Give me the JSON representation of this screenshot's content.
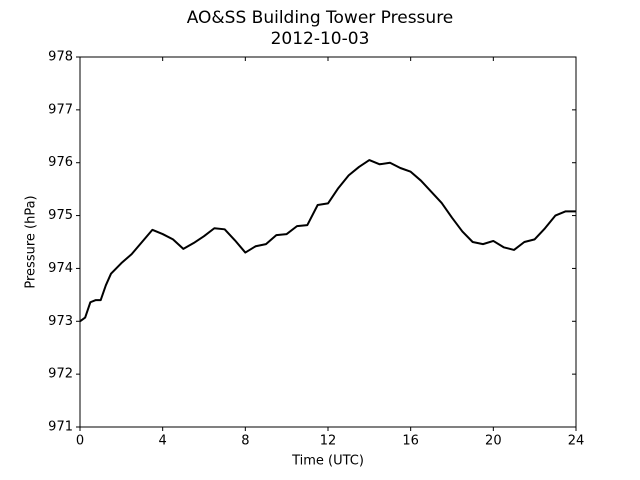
{
  "chart_data": {
    "type": "line",
    "title": "AO&SS Building Tower Pressure",
    "subtitle": "2012-10-03",
    "xlabel": "Time (UTC)",
    "ylabel": "Pressure (hPa)",
    "x": [
      0,
      0.25,
      0.5,
      0.75,
      1,
      1.25,
      1.5,
      2,
      2.5,
      3,
      3.5,
      4,
      4.5,
      5,
      5.5,
      6,
      6.5,
      7,
      7.5,
      8,
      8.5,
      9,
      9.5,
      10,
      10.5,
      11,
      11.5,
      12,
      12.5,
      13,
      13.5,
      14,
      14.5,
      15,
      15.5,
      16,
      16.5,
      17,
      17.5,
      18,
      18.5,
      19,
      19.5,
      20,
      20.5,
      21,
      21.5,
      22,
      22.5,
      23,
      23.5,
      24
    ],
    "series": [
      {
        "name": "Pressure",
        "color": "#000000",
        "values": [
          973.0,
          973.07,
          973.36,
          973.4,
          973.4,
          973.68,
          973.9,
          974.1,
          974.27,
          974.5,
          974.73,
          974.65,
          974.55,
          974.37,
          974.48,
          974.61,
          974.76,
          974.74,
          974.53,
          974.3,
          974.42,
          974.46,
          974.63,
          974.65,
          974.8,
          974.82,
          975.2,
          975.23,
          975.52,
          975.76,
          975.92,
          976.05,
          975.97,
          976.0,
          975.9,
          975.83,
          975.66,
          975.45,
          975.24,
          974.96,
          974.7,
          974.5,
          974.46,
          974.52,
          974.4,
          974.35,
          974.5,
          974.55,
          974.76,
          975.0,
          975.08,
          975.08
        ]
      }
    ],
    "xlim": [
      0,
      24
    ],
    "xticks": [
      0,
      4,
      8,
      12,
      16,
      20,
      24
    ],
    "ylim": [
      971,
      978
    ],
    "yticks": [
      971,
      972,
      973,
      974,
      975,
      976,
      977,
      978
    ]
  }
}
